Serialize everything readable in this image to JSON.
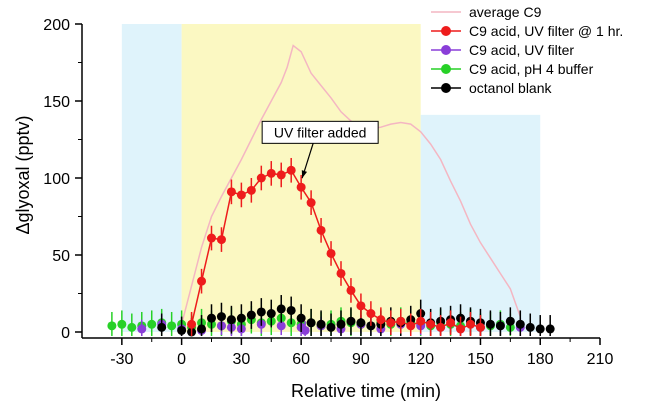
{
  "chart_data": {
    "type": "scatter",
    "xlabel": "Relative time (min)",
    "ylabel": "Δglyoxal (pptv)",
    "xlim": [
      -50,
      210
    ],
    "ylim": [
      0,
      200
    ],
    "xticks": [
      -30,
      0,
      30,
      60,
      90,
      120,
      150,
      180,
      210
    ],
    "yticks": [
      0,
      50,
      100,
      150,
      200
    ],
    "x_tick_labels": [
      "-30",
      "0",
      "30",
      "60",
      "90",
      "120",
      "150",
      "180",
      "210"
    ],
    "y_tick_labels": [
      "0",
      "50",
      "100",
      "150",
      "200"
    ],
    "regions": [
      {
        "x0": -30,
        "x1": 0,
        "y0": 0,
        "y1": 200,
        "color": "#dff3fb"
      },
      {
        "x0": 0,
        "x1": 120,
        "y0": 0,
        "y1": 200,
        "color": "#fbf8c2"
      },
      {
        "x0": 120,
        "x1": 180,
        "y0": 0,
        "y1": 141,
        "color": "#dff3fb"
      }
    ],
    "annotation": {
      "text": "UV filter added",
      "target_x": 60,
      "target_y": 96,
      "label_x": 60,
      "label_y": 129
    },
    "series": [
      {
        "name": "average C9",
        "style": "line",
        "color": "#f4b6c2",
        "x": [
          0,
          5,
          10,
          15,
          20,
          25,
          30,
          35,
          40,
          45,
          50,
          53,
          56,
          60,
          65,
          70,
          75,
          80,
          85,
          90,
          95,
          100,
          105,
          110,
          115,
          120,
          125,
          130,
          135,
          140,
          145,
          150,
          155,
          160,
          165,
          170
        ],
        "y": [
          5,
          30,
          55,
          75,
          88,
          100,
          112,
          125,
          138,
          150,
          162,
          172,
          186,
          182,
          168,
          160,
          152,
          143,
          137,
          132,
          132,
          133,
          135,
          136,
          135,
          130,
          122,
          112,
          98,
          85,
          70,
          58,
          48,
          38,
          28,
          10
        ]
      },
      {
        "name": "C9 acid, UV filter @ 1 hr.",
        "style": "markers+line",
        "color": "#ee1c1c",
        "err": 8,
        "x": [
          5,
          10,
          15,
          20,
          25,
          30,
          35,
          40,
          45,
          50,
          55,
          60,
          65,
          70,
          75,
          80,
          85,
          90,
          95,
          100,
          105,
          110,
          115,
          120,
          125,
          130,
          135,
          140,
          145,
          150
        ],
        "y": [
          5,
          33,
          61,
          60,
          91,
          89,
          92,
          100,
          103,
          102,
          105,
          94,
          84,
          66,
          51,
          38,
          27,
          17,
          12,
          8,
          6,
          7,
          4,
          7,
          5,
          3,
          6,
          2,
          5,
          3
        ]
      },
      {
        "name": "C9 acid, UV filter",
        "style": "markers",
        "color": "#8a3ed8",
        "err": 6,
        "x": [
          -20,
          -10,
          0,
          10,
          20,
          25,
          30,
          40,
          50,
          60,
          62,
          70,
          80,
          90,
          95,
          100,
          110,
          120,
          130,
          140,
          150,
          160,
          170
        ],
        "y": [
          2,
          5,
          2,
          1,
          4,
          3,
          2,
          5,
          4,
          3,
          1,
          4,
          2,
          5,
          4,
          2,
          5,
          4,
          3,
          2,
          3,
          4,
          3
        ]
      },
      {
        "name": "C9 acid, pH 4 buffer",
        "style": "markers",
        "color": "#27d127",
        "err": 9,
        "x": [
          -35,
          -30,
          -25,
          -20,
          -15,
          -10,
          -5,
          0,
          5,
          10,
          15,
          20,
          25,
          30,
          35,
          40,
          45,
          50,
          55,
          60,
          65,
          70,
          75,
          80,
          85,
          90,
          95,
          100,
          105,
          110,
          115,
          120,
          125,
          130,
          135,
          140,
          145,
          150,
          155,
          160,
          165
        ],
        "y": [
          4,
          5,
          3,
          4,
          5,
          6,
          4,
          5,
          3,
          6,
          5,
          4,
          7,
          5,
          8,
          6,
          7,
          9,
          6,
          5,
          6,
          4,
          5,
          7,
          6,
          5,
          4,
          6,
          5,
          7,
          6,
          5,
          4,
          6,
          5,
          4,
          6,
          3,
          4,
          5,
          3
        ]
      },
      {
        "name": "octanol blank",
        "style": "markers",
        "color": "#000000",
        "err": 9,
        "x": [
          -10,
          0,
          5,
          10,
          15,
          20,
          25,
          30,
          35,
          40,
          45,
          50,
          55,
          60,
          65,
          70,
          75,
          80,
          85,
          90,
          95,
          100,
          105,
          110,
          115,
          120,
          125,
          130,
          135,
          140,
          145,
          150,
          155,
          160,
          165,
          170,
          175,
          180,
          185
        ],
        "y": [
          3,
          1,
          0,
          2,
          9,
          10,
          8,
          9,
          11,
          13,
          12,
          15,
          14,
          9,
          6,
          5,
          3,
          5,
          7,
          6,
          4,
          5,
          7,
          6,
          8,
          12,
          6,
          7,
          8,
          9,
          7,
          6,
          5,
          4,
          7,
          5,
          3,
          2,
          2
        ]
      }
    ],
    "legend": [
      "average C9",
      "C9 acid, UV filter @ 1 hr.",
      "C9 acid, UV filter",
      "C9 acid, pH 4 buffer",
      "octanol blank"
    ],
    "legend_position": "top-right"
  }
}
